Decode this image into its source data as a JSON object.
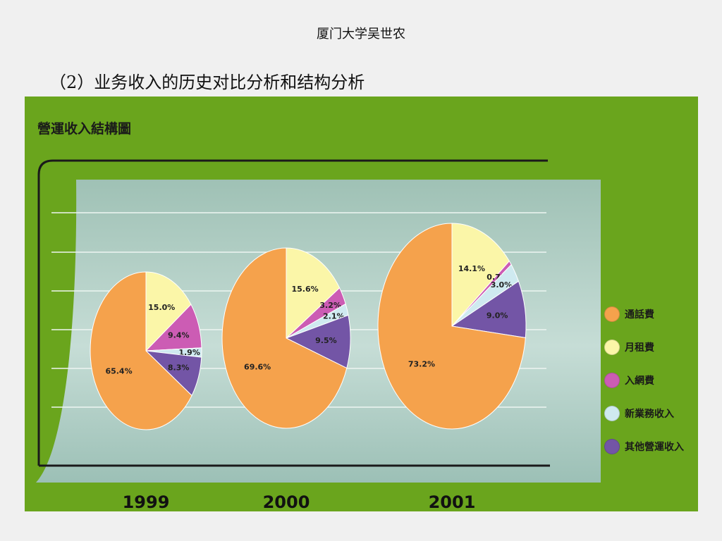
{
  "header": {
    "text": "厦门大学吴世农"
  },
  "slide": {
    "subtitle": "（2）业务收入的历史对比分析和结构分析"
  },
  "chart_data": {
    "type": "pie",
    "title": "營運收入結構圖",
    "categories": [
      "通話費",
      "月租費",
      "入網費",
      "新業務收入",
      "其他營運收入"
    ],
    "colors": [
      "#f5a24c",
      "#fbf6a8",
      "#cc5cb4",
      "#cfeaf0",
      "#7355a6"
    ],
    "series": [
      {
        "name": "1999",
        "values": [
          65.4,
          15.0,
          9.4,
          1.9,
          8.3
        ],
        "labels": [
          "65.4%",
          "15.0%",
          "9.4%",
          "1.9%",
          "8.3%"
        ]
      },
      {
        "name": "2000",
        "values": [
          69.6,
          15.6,
          3.2,
          2.1,
          9.5
        ],
        "labels": [
          "69.6%",
          "15.6%",
          "3.2%",
          "2.1%",
          "9.5%"
        ]
      },
      {
        "name": "2001",
        "values": [
          73.2,
          14.1,
          0.7,
          3.0,
          9.0
        ],
        "labels": [
          "73.2%",
          "14.1%",
          "0.7%",
          "3.0%",
          "9.0%"
        ]
      }
    ],
    "legend_position": "right"
  }
}
